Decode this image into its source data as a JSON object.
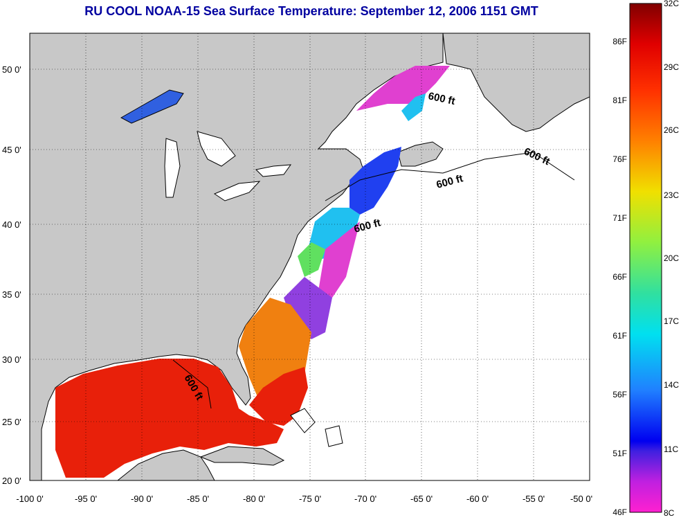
{
  "title": "RU COOL  NOAA-15  Sea Surface Temperature:  September 12, 2006 1151 GMT",
  "map": {
    "lon_labels": [
      "-100 0'",
      "-95 0'",
      "-90 0'",
      "-85 0'",
      "-80 0'",
      "-75 0'",
      "-70 0'",
      "-65 0'",
      "-60 0'",
      "-55 0'",
      "-50 0'"
    ],
    "lat_labels": [
      "50 0'",
      "45 0'",
      "40 0'",
      "35 0'",
      "30 0'",
      "25 0'",
      "20 0'"
    ],
    "contour_labels": [
      "600 ft",
      "600 ft",
      "600 ft",
      "600 ft",
      "600 ft"
    ],
    "colors": {
      "land": "#c8c8c8",
      "ocean_nodata": "#ffffff",
      "warm_gulf": "#e8200a",
      "orange": "#f08010",
      "green": "#60e060",
      "cyan": "#20c0f0",
      "blue": "#2040f0",
      "magenta": "#e040d0"
    }
  },
  "colorbar": {
    "celsius_labels": [
      "32C",
      "29C",
      "26C",
      "23C",
      "20C",
      "17C",
      "14C",
      "11C",
      "8C"
    ],
    "fahrenheit_labels": [
      "86F",
      "81F",
      "76F",
      "71F",
      "66F",
      "61F",
      "56F",
      "51F",
      "46F"
    ],
    "range_c": [
      8,
      32
    ],
    "range_f": [
      46,
      90
    ]
  }
}
